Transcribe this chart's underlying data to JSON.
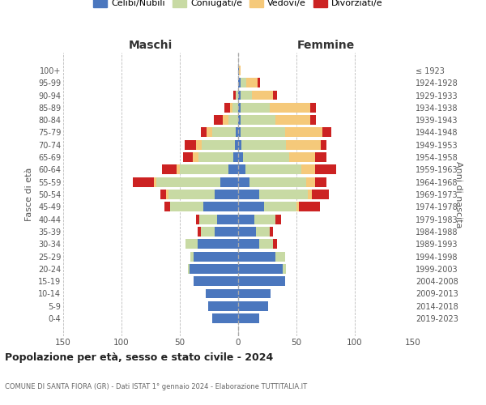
{
  "age_groups": [
    "0-4",
    "5-9",
    "10-14",
    "15-19",
    "20-24",
    "25-29",
    "30-34",
    "35-39",
    "40-44",
    "45-49",
    "50-54",
    "55-59",
    "60-64",
    "65-69",
    "70-74",
    "75-79",
    "80-84",
    "85-89",
    "90-94",
    "95-99",
    "100+"
  ],
  "birth_years": [
    "2019-2023",
    "2014-2018",
    "2009-2013",
    "2004-2008",
    "1999-2003",
    "1994-1998",
    "1989-1993",
    "1984-1988",
    "1979-1983",
    "1974-1978",
    "1969-1973",
    "1964-1968",
    "1959-1963",
    "1954-1958",
    "1949-1953",
    "1944-1948",
    "1939-1943",
    "1934-1938",
    "1929-1933",
    "1924-1928",
    "≤ 1923"
  ],
  "colors": {
    "celibi": "#4b77be",
    "coniugati": "#c8daa4",
    "vedovi": "#f5c97a",
    "divorziati": "#cc2222"
  },
  "maschi": {
    "celibi": [
      22,
      26,
      28,
      38,
      42,
      38,
      35,
      20,
      18,
      30,
      20,
      15,
      8,
      4,
      3,
      2,
      0,
      0,
      0,
      0,
      0
    ],
    "coniugati": [
      0,
      0,
      0,
      0,
      1,
      3,
      10,
      12,
      15,
      28,
      40,
      55,
      42,
      30,
      28,
      20,
      8,
      5,
      2,
      0,
      0
    ],
    "vedovi": [
      0,
      0,
      0,
      0,
      0,
      0,
      0,
      0,
      0,
      0,
      2,
      2,
      3,
      5,
      5,
      5,
      5,
      2,
      0,
      0,
      0
    ],
    "divorziati": [
      0,
      0,
      0,
      0,
      0,
      0,
      0,
      3,
      3,
      5,
      5,
      18,
      12,
      8,
      10,
      5,
      8,
      5,
      2,
      0,
      0
    ]
  },
  "femmine": {
    "celibi": [
      18,
      26,
      28,
      40,
      38,
      32,
      18,
      15,
      14,
      22,
      18,
      10,
      6,
      4,
      3,
      2,
      2,
      2,
      2,
      2,
      1
    ],
    "coniugati": [
      0,
      0,
      0,
      0,
      3,
      8,
      12,
      12,
      18,
      28,
      42,
      48,
      48,
      40,
      38,
      38,
      30,
      25,
      10,
      5,
      0
    ],
    "vedovi": [
      0,
      0,
      0,
      0,
      0,
      0,
      0,
      0,
      0,
      2,
      3,
      8,
      12,
      22,
      30,
      32,
      30,
      35,
      18,
      10,
      1
    ],
    "divorziati": [
      0,
      0,
      0,
      0,
      0,
      0,
      3,
      3,
      5,
      18,
      15,
      10,
      18,
      10,
      5,
      8,
      5,
      5,
      3,
      2,
      0
    ]
  },
  "title": "Popolazione per età, sesso e stato civile - 2024",
  "subtitle": "COMUNE DI SANTA FIORA (GR) - Dati ISTAT 1° gennaio 2024 - Elaborazione TUTTITALIA.IT",
  "xlabel_left": "Maschi",
  "xlabel_right": "Femmine",
  "ylabel_left": "Fasce di età",
  "ylabel_right": "Anni di nascita",
  "xlim": 150,
  "legend_labels": [
    "Celibi/Nubili",
    "Coniugati/e",
    "Vedovi/e",
    "Divorziati/e"
  ],
  "background_color": "#ffffff",
  "grid_color": "#cccccc"
}
